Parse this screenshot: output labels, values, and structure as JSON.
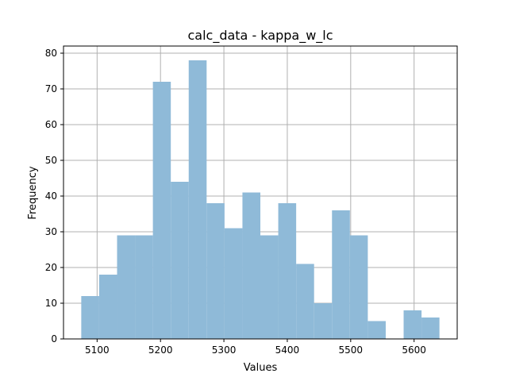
{
  "chart_data": {
    "type": "bar",
    "title": "calc_data - kappa_w_lc",
    "xlabel": "Values",
    "ylabel": "Frequency",
    "bin_edges": [
      5075,
      5103.25,
      5131.5,
      5159.75,
      5188,
      5216.25,
      5244.5,
      5272.75,
      5301,
      5329.25,
      5357.5,
      5385.75,
      5414,
      5442.25,
      5470.5,
      5498.75,
      5527,
      5555.25,
      5583.5,
      5611.75,
      5640
    ],
    "values": [
      12,
      18,
      29,
      29,
      72,
      44,
      78,
      38,
      31,
      41,
      29,
      38,
      21,
      10,
      36,
      29,
      5,
      0,
      8,
      6
    ],
    "xlim": [
      5047,
      5668
    ],
    "ylim": [
      0,
      82
    ],
    "xticks": [
      5100,
      5200,
      5300,
      5400,
      5500,
      5600
    ],
    "yticks": [
      0,
      10,
      20,
      30,
      40,
      50,
      60,
      70,
      80
    ],
    "grid": true,
    "bar_color": "#8fbad8"
  }
}
